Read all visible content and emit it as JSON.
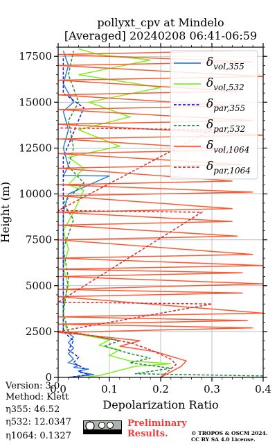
{
  "chart_data": {
    "type": "line",
    "title_line1": "pollyxt_cpv at Mindelo",
    "title_line2": "[Averaged] 20240208 06:41-06:59",
    "xlabel": "Depolarization Ratio",
    "ylabel": "Height (m)",
    "xlim": [
      0.0,
      0.4
    ],
    "ylim": [
      0,
      18000
    ],
    "x_ticks": [
      "0.0",
      "0.1",
      "0.2",
      "0.3",
      "0.4"
    ],
    "y_ticks": [
      "0",
      "2500",
      "5000",
      "7500",
      "10000",
      "12500",
      "15000",
      "17500"
    ],
    "grid": true,
    "legend_position": "top-right",
    "series": [
      {
        "name": "δvol,355",
        "label_main": "δ",
        "label_sub": "vol,355",
        "color": "#2f7fd5",
        "dash": "solid",
        "points": [
          [
            0.02,
            0
          ],
          [
            0.07,
            150
          ],
          [
            0.05,
            250
          ],
          [
            0.04,
            350
          ],
          [
            0.06,
            450
          ],
          [
            0.03,
            550
          ],
          [
            0.04,
            650
          ],
          [
            0.02,
            800
          ],
          [
            0.03,
            1000
          ],
          [
            0.02,
            1300
          ],
          [
            0.03,
            1600
          ],
          [
            0.02,
            1900
          ],
          [
            0.03,
            2200
          ],
          [
            0.02,
            2400
          ],
          [
            0.01,
            2500
          ],
          [
            0.01,
            3000
          ],
          [
            0.01,
            4000
          ],
          [
            0.01,
            5000
          ],
          [
            0.01,
            6000
          ],
          [
            0.01,
            7000
          ],
          [
            0.01,
            8000
          ],
          [
            0.01,
            9000
          ],
          [
            0.02,
            10000
          ],
          [
            0.1,
            10980
          ],
          [
            0.01,
            11000
          ],
          [
            0.02,
            11500
          ],
          [
            0.01,
            12500
          ],
          [
            0.02,
            13500
          ],
          [
            0.01,
            14500
          ],
          [
            0.03,
            15000
          ],
          [
            0.01,
            16000
          ],
          [
            0.02,
            17000
          ],
          [
            0.01,
            17800
          ]
        ]
      },
      {
        "name": "δvol,532",
        "label_main": "δ",
        "label_sub": "vol,532",
        "color": "#80f01a",
        "dash": "solid",
        "points": [
          [
            0.05,
            0
          ],
          [
            0.08,
            100
          ],
          [
            0.15,
            600
          ],
          [
            0.22,
            750
          ],
          [
            0.14,
            900
          ],
          [
            0.1,
            1200
          ],
          [
            0.12,
            1500
          ],
          [
            0.08,
            1750
          ],
          [
            0.1,
            2050
          ],
          [
            0.05,
            2300
          ],
          [
            0.02,
            2500
          ],
          [
            0.01,
            3000
          ],
          [
            0.01,
            4000
          ],
          [
            0.02,
            5000
          ],
          [
            0.01,
            6000
          ],
          [
            0.02,
            7000
          ],
          [
            0.01,
            8000
          ],
          [
            0.03,
            9000
          ],
          [
            0.05,
            10200
          ],
          [
            0.02,
            10500
          ],
          [
            0.05,
            11400
          ],
          [
            0.02,
            12000
          ],
          [
            0.12,
            12600
          ],
          [
            0.04,
            13500
          ],
          [
            0.14,
            14200
          ],
          [
            0.06,
            15000
          ],
          [
            0.2,
            15800
          ],
          [
            0.04,
            16500
          ],
          [
            0.18,
            17300
          ],
          [
            0.08,
            17600
          ],
          [
            0.04,
            17900
          ]
        ]
      },
      {
        "name": "δpar,355",
        "label_main": "δ",
        "label_sub": "par,355",
        "color": "#1a1acc",
        "dash": "dashed",
        "points": [
          [
            0.02,
            0
          ],
          [
            0.06,
            150
          ],
          [
            0.04,
            300
          ],
          [
            0.05,
            500
          ],
          [
            0.03,
            800
          ],
          [
            0.04,
            1100
          ],
          [
            0.02,
            1500
          ],
          [
            0.03,
            2000
          ],
          [
            0.01,
            2500
          ],
          [
            0.01,
            4000
          ],
          [
            0.01,
            6000
          ],
          [
            0.01,
            8000
          ],
          [
            0.01,
            10000
          ],
          [
            0.01,
            12000
          ],
          [
            0.05,
            14700
          ],
          [
            0.01,
            15500
          ],
          [
            0.01,
            17500
          ]
        ]
      },
      {
        "name": "δpar,532",
        "label_main": "δ",
        "label_sub": "par,532",
        "color": "#1a8a3a",
        "dash": "dashed",
        "points": [
          [
            0.4,
            80
          ],
          [
            0.15,
            200
          ],
          [
            0.22,
            500
          ],
          [
            0.14,
            800
          ],
          [
            0.18,
            1050
          ],
          [
            0.14,
            1300
          ],
          [
            0.09,
            1700
          ],
          [
            0.12,
            2000
          ],
          [
            0.06,
            2300
          ],
          [
            0.02,
            2500
          ],
          [
            0.01,
            3500
          ],
          [
            0.02,
            5400
          ],
          [
            0.01,
            7000
          ],
          [
            0.03,
            8600
          ],
          [
            0.01,
            9500
          ],
          [
            0.05,
            10600
          ],
          [
            0.02,
            11500
          ],
          [
            0.03,
            12500
          ],
          [
            0.02,
            14000
          ],
          [
            0.04,
            15000
          ],
          [
            0.02,
            16500
          ],
          [
            0.03,
            17800
          ]
        ]
      },
      {
        "name": "δvol,1064",
        "label_main": "δ",
        "label_sub": "vol,1064",
        "color": "#fa5a32",
        "dash": "solid",
        "points": [
          [
            0.2,
            0
          ],
          [
            0.24,
            600
          ],
          [
            0.25,
            900
          ],
          [
            0.22,
            1150
          ],
          [
            0.19,
            1400
          ],
          [
            0.12,
            1700
          ],
          [
            0.16,
            2000
          ],
          [
            0.06,
            2300
          ],
          [
            0.0,
            2450
          ],
          [
            0.38,
            2700
          ],
          [
            0.0,
            2900
          ],
          [
            0.37,
            3100
          ],
          [
            0.0,
            3300
          ],
          [
            0.4,
            3500
          ],
          [
            0.0,
            4400
          ],
          [
            0.36,
            4600
          ],
          [
            0.0,
            4800
          ],
          [
            0.4,
            5100
          ],
          [
            0.0,
            5500
          ],
          [
            0.36,
            5700
          ],
          [
            0.0,
            5900
          ],
          [
            0.4,
            6100
          ],
          [
            0.0,
            6500
          ],
          [
            0.38,
            6700
          ],
          [
            0.0,
            7500
          ],
          [
            0.35,
            7700
          ],
          [
            0.0,
            8300
          ],
          [
            0.34,
            8500
          ],
          [
            0.0,
            9000
          ],
          [
            0.34,
            9200
          ],
          [
            0.0,
            9900
          ],
          [
            0.38,
            10100
          ],
          [
            0.0,
            10500
          ],
          [
            0.34,
            10700
          ],
          [
            0.0,
            11400
          ],
          [
            0.36,
            11600
          ],
          [
            0.0,
            12200
          ],
          [
            0.35,
            12400
          ],
          [
            0.0,
            13000
          ],
          [
            0.4,
            13200
          ],
          [
            0.0,
            13800
          ],
          [
            0.38,
            14000
          ],
          [
            0.0,
            14600
          ],
          [
            0.34,
            14800
          ],
          [
            0.0,
            15400
          ],
          [
            0.35,
            15600
          ],
          [
            0.0,
            16200
          ],
          [
            0.4,
            16400
          ],
          [
            0.0,
            17000
          ],
          [
            0.38,
            17200
          ],
          [
            0.0,
            17600
          ],
          [
            0.35,
            17800
          ]
        ]
      },
      {
        "name": "δpar,1064",
        "label_main": "δ",
        "label_sub": "par,1064",
        "color": "#d82a2a",
        "dash": "dashed",
        "points": [
          [
            0.2,
            0
          ],
          [
            0.23,
            700
          ],
          [
            0.22,
            1000
          ],
          [
            0.18,
            1500
          ],
          [
            0.14,
            1900
          ],
          [
            0.05,
            2350
          ],
          [
            0.0,
            2500
          ],
          [
            0.3,
            4000
          ],
          [
            0.0,
            4100
          ],
          [
            0.28,
            9000
          ],
          [
            0.0,
            9100
          ],
          [
            0.3,
            13500
          ],
          [
            0.0,
            13600
          ]
        ]
      }
    ]
  },
  "footer": {
    "version": "Version: 3.0",
    "method": "Method: Klett",
    "eta355": "η355:  46.52",
    "eta532": "η532: 12.0347",
    "eta1064": "η1064: 0.1327",
    "preliminary_line1": "Preliminary",
    "preliminary_line2": "Results.",
    "copyright_line1": "© TROPOS & OSCM 2024.",
    "copyright_line2": "CC BY SA 4.0 License.",
    "license_logo": "cc-by-sa-logo"
  }
}
